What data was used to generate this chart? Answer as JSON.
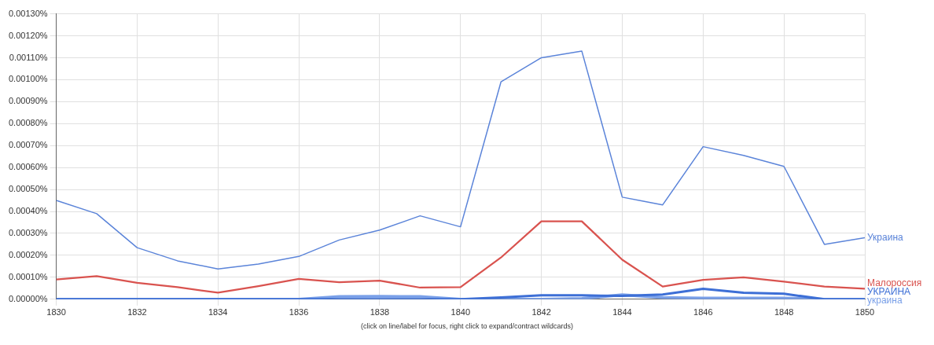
{
  "chart_data": {
    "type": "line",
    "x": [
      1830,
      1831,
      1832,
      1833,
      1834,
      1835,
      1836,
      1837,
      1838,
      1839,
      1840,
      1841,
      1842,
      1843,
      1844,
      1845,
      1846,
      1847,
      1848,
      1849,
      1850
    ],
    "series": [
      {
        "name": "Украина",
        "color": "#5b84d9",
        "values": [
          0.00045,
          0.00039,
          0.000235,
          0.000175,
          0.000138,
          0.00016,
          0.000195,
          0.00027,
          0.000315,
          0.00038,
          0.00033,
          0.00099,
          0.0011,
          0.00113,
          0.000465,
          0.00043,
          0.000695,
          0.000655,
          0.000605,
          0.00025,
          0.00028
        ]
      },
      {
        "name": "Малороссия",
        "color": "#d9534f",
        "values": [
          9e-05,
          0.000105,
          7.5e-05,
          5.5e-05,
          3e-05,
          6e-05,
          9.3e-05,
          7.8e-05,
          8.5e-05,
          5.3e-05,
          5.5e-05,
          0.00019,
          0.000355,
          0.000355,
          0.00018,
          5.8e-05,
          8.8e-05,
          0.0001,
          8e-05,
          5.8e-05,
          4.8e-05
        ]
      },
      {
        "name": "УКРАИНА",
        "color": "#3d6fd6",
        "values": [
          0,
          0,
          0,
          0,
          0,
          0,
          0,
          0,
          0,
          0,
          0,
          8e-06,
          1.8e-05,
          1.8e-05,
          1.5e-05,
          2.2e-05,
          4.8e-05,
          3e-05,
          2.5e-05,
          0,
          0
        ]
      },
      {
        "name": "украина",
        "color": "#7aa0e8",
        "values": [
          0,
          0,
          0,
          0,
          0,
          0,
          0,
          1.2e-05,
          1.3e-05,
          1.2e-05,
          0,
          0,
          0,
          3e-06,
          2e-05,
          8e-06,
          5e-06,
          5e-06,
          5e-06,
          0,
          0
        ]
      }
    ],
    "xlim": [
      1830,
      1850
    ],
    "xticks": [
      1830,
      1832,
      1834,
      1836,
      1838,
      1840,
      1842,
      1844,
      1846,
      1848,
      1850
    ],
    "ylim": [
      0,
      0.0013
    ],
    "yticks": [
      {
        "value": 0,
        "label": "0.00000%"
      },
      {
        "value": 0.0001,
        "label": "0.00010%"
      },
      {
        "value": 0.0002,
        "label": "0.00020%"
      },
      {
        "value": 0.0003,
        "label": "0.00030%"
      },
      {
        "value": 0.0004,
        "label": "0.00040%"
      },
      {
        "value": 0.0005,
        "label": "0.00050%"
      },
      {
        "value": 0.0006,
        "label": "0.00060%"
      },
      {
        "value": 0.0007,
        "label": "0.00070%"
      },
      {
        "value": 0.0008,
        "label": "0.00080%"
      },
      {
        "value": 0.0009,
        "label": "0.00090%"
      },
      {
        "value": 0.001,
        "label": "0.00100%"
      },
      {
        "value": 0.0011,
        "label": "0.00110%"
      },
      {
        "value": 0.0012,
        "label": "0.00120%"
      },
      {
        "value": 0.0013,
        "label": "0.00130%"
      }
    ],
    "grid": true,
    "legend": false,
    "marker": "none",
    "line_style": "solid",
    "annotations": [
      "(click on line/label for focus, right click to expand/contract wildcards)"
    ]
  }
}
